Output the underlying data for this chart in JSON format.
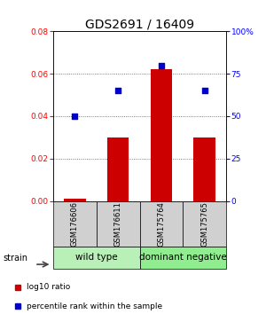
{
  "title": "GDS2691 / 16409",
  "samples": [
    "GSM176606",
    "GSM176611",
    "GSM175764",
    "GSM175765"
  ],
  "group_names": [
    "wild type",
    "dominant negative"
  ],
  "group1_indices": [
    0,
    1
  ],
  "group2_indices": [
    2,
    3
  ],
  "log10_ratio": [
    0.001,
    0.03,
    0.062,
    0.03
  ],
  "percentile_values": [
    50,
    65,
    80,
    65
  ],
  "ylim_left": [
    0,
    0.08
  ],
  "ylim_right": [
    0,
    100
  ],
  "yticks_left": [
    0,
    0.02,
    0.04,
    0.06,
    0.08
  ],
  "yticks_right": [
    0,
    25,
    50,
    75,
    100
  ],
  "ytick_right_labels": [
    "0",
    "25",
    "50",
    "75",
    "100%"
  ],
  "bar_color": "#CC0000",
  "dot_color": "#0000CC",
  "bar_width": 0.5,
  "grid_color": "#555555",
  "title_fontsize": 10,
  "tick_fontsize": 6.5,
  "legend_red_label": "log10 ratio",
  "legend_blue_label": "percentile rank within the sample",
  "group_label_fontsize": 7.5,
  "sample_label_fontsize": 6,
  "strain_label": "strain",
  "group1_color": "#b8f0b8",
  "group2_color": "#90EE90",
  "sample_box_color": "#d0d0d0"
}
